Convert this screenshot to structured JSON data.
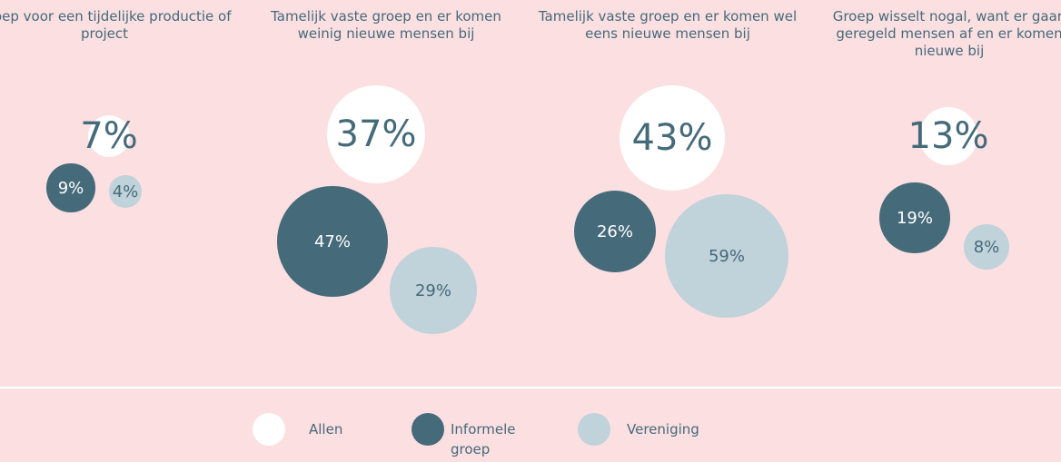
{
  "chart_data": {
    "type": "bubble",
    "categories": [
      "Groep voor een tijdelijke productie of project",
      "Tamelijk vaste groep en er komen weinig nieuwe mensen bij",
      "Tamelijk vaste groep en er komen wel eens nieuwe mensen bij",
      "Groep wisselt nogal, want er gaan geregeld mensen af en er komen nieuwe bij"
    ],
    "series": [
      {
        "name": "Allen",
        "color": "#ffffff",
        "values": [
          7,
          37,
          43,
          13
        ],
        "value_labels": [
          "7%",
          "37%",
          "43%",
          "13%"
        ]
      },
      {
        "name": "Informele groep",
        "color": "#456a7a",
        "values": [
          9,
          47,
          26,
          19
        ],
        "value_labels": [
          "9%",
          "47%",
          "26%",
          "19%"
        ]
      },
      {
        "name": "Vereniging",
        "color": "#c0d2da",
        "values": [
          4,
          29,
          59,
          8
        ],
        "value_labels": [
          "4%",
          "29%",
          "59%",
          "8%"
        ]
      }
    ]
  }
}
